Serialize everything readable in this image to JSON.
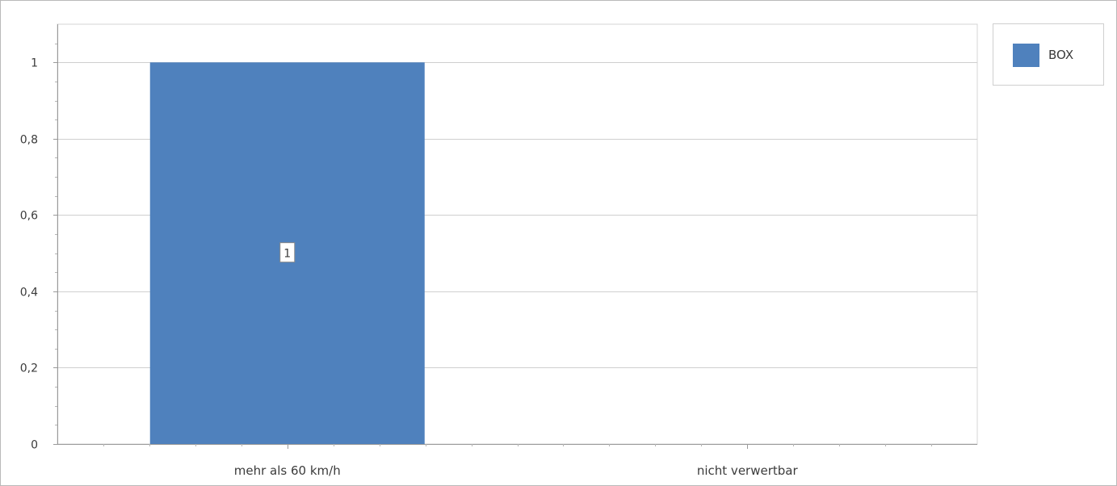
{
  "chart_data": {
    "type": "bar",
    "categories": [
      "mehr als 60 km/h",
      "nicht verwertbar"
    ],
    "series": [
      {
        "name": "BOX",
        "values": [
          1,
          0
        ],
        "color": "#4f81bd"
      }
    ],
    "ylim": [
      0,
      1.1
    ],
    "yticks": [
      0,
      0.2,
      0.4,
      0.6,
      0.8,
      1
    ],
    "ytick_labels": [
      "0",
      "0,2",
      "0,4",
      "0,6",
      "0,8",
      "1"
    ],
    "data_labels": [
      "1",
      ""
    ],
    "grid": true,
    "legend_position": "top-right",
    "title": "",
    "xlabel": "",
    "ylabel": ""
  }
}
